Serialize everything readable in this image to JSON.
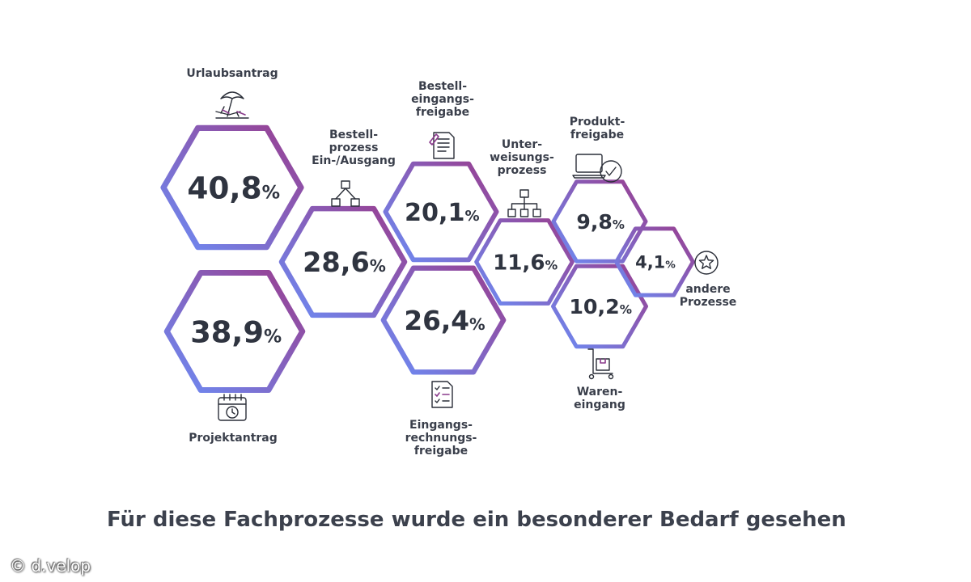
{
  "caption": "Für diese Fachprozesse wurde ein besonderer Bedarf gesehen",
  "credit": "© d.velop",
  "colors": {
    "gradient_start": "#6c8cf5",
    "gradient_end": "#9a3d8e",
    "text": "#2f3440"
  },
  "chart_data": {
    "type": "bar",
    "unit": "%",
    "categories": [
      "Urlaubsantrag",
      "Projektantrag",
      "Bestellprozess Ein-/Ausgang",
      "Bestelleingangsfreigabe",
      "Eingangsrechnungsfreigabe",
      "Unterweisungsprozess",
      "Produktfreigabe",
      "Wareneingang",
      "andere Prozesse"
    ],
    "values": [
      40.8,
      38.9,
      28.6,
      20.1,
      26.4,
      11.6,
      9.8,
      10.2,
      4.1
    ],
    "value_labels": [
      "40,8",
      "38,9",
      "28,6",
      "20,1",
      "26,4",
      "11,6",
      "9,8",
      "10,2",
      "4,1"
    ],
    "label_lines": [
      [
        "Urlaubsantrag"
      ],
      [
        "Projektantrag"
      ],
      [
        "Bestell-",
        "prozess",
        "Ein-/Ausgang"
      ],
      [
        "Bestell-",
        "eingangs-",
        "freigabe"
      ],
      [
        "Eingangs-",
        "rechnungs-",
        "freigabe"
      ],
      [
        "Unter-",
        "weisungs-",
        "prozess"
      ],
      [
        "Produkt-",
        "freigabe"
      ],
      [
        "Waren-",
        "eingang"
      ],
      [
        "andere",
        "Prozesse"
      ]
    ],
    "icons": [
      "beach-umbrella-icon",
      "calendar-clock-icon",
      "flowchart-icon",
      "document-pen-icon",
      "document-checklist-icon",
      "hierarchy-icon",
      "laptop-check-icon",
      "package-trolley-icon",
      "star-circle-icon"
    ]
  }
}
